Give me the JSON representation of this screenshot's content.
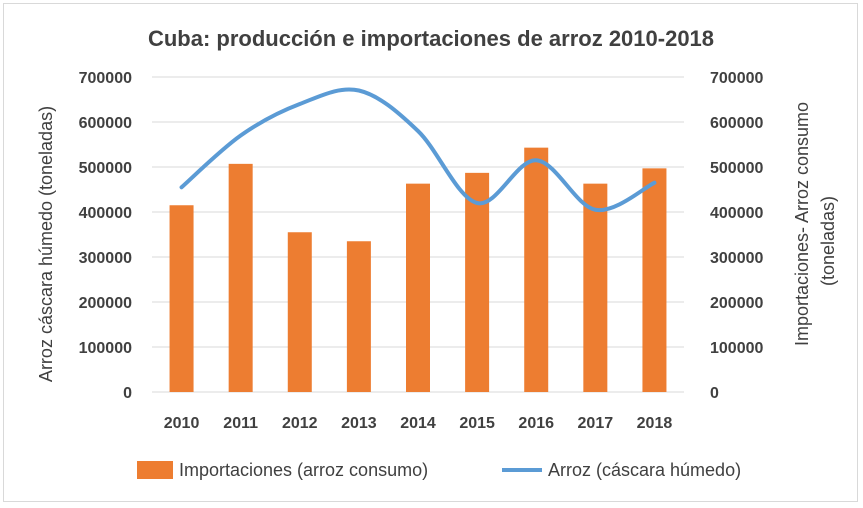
{
  "chart_data": {
    "type": "bar",
    "title": "Cuba: producción e importaciones de arroz 2010-2018",
    "categories": [
      "2010",
      "2011",
      "2012",
      "2013",
      "2014",
      "2015",
      "2016",
      "2017",
      "2018"
    ],
    "series": [
      {
        "name": "Importaciones (arroz consumo)",
        "type": "bar",
        "axis": "right",
        "color": "#ED7D31",
        "values": [
          415000,
          507000,
          355000,
          335000,
          463000,
          487000,
          543000,
          463000,
          497000
        ]
      },
      {
        "name": "Arroz (cáscara húmedo)",
        "type": "line",
        "axis": "left",
        "color": "#5B9BD5",
        "values": [
          455000,
          570000,
          640000,
          670000,
          580000,
          420000,
          515000,
          405000,
          465000
        ]
      }
    ],
    "ylabel_left": "Arroz cáscara húmedo (toneladas)",
    "ylabel_right_line1": "Importaciones- Arroz consumo",
    "ylabel_right_line2": "(toneladas)",
    "ylim": [
      0,
      700000
    ],
    "yticks": [
      "0",
      "100000",
      "200000",
      "300000",
      "400000",
      "500000",
      "600000",
      "700000"
    ],
    "grid": true,
    "legend_position": "bottom"
  }
}
